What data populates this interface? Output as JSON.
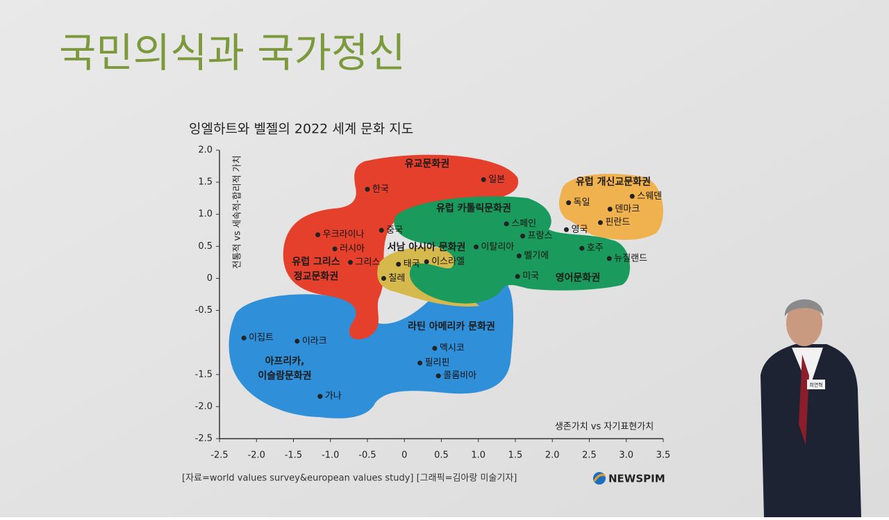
{
  "slide_title": "국민의식과 국가정신",
  "chart_data": {
    "type": "scatter",
    "title": "잉엘하트와 벨젤의 2022 세계 문화 지도",
    "x_label": "생존가치 vs 자기표현가치",
    "y_label": "전통적 vs 세속적-합리적 가치",
    "xlim": [
      -2.5,
      3.5
    ],
    "ylim": [
      -2.5,
      2.0
    ],
    "xticks": [
      -2.5,
      {
        "value": -2,
        "label": "-2.0"
      },
      -1.5,
      {
        "value": -1,
        "label": "-1.0"
      },
      -0.5,
      0,
      0.5,
      {
        "value": 1,
        "label": "1.0"
      },
      1.5,
      {
        "value": 2,
        "label": "2.0"
      },
      2.5,
      {
        "value": 3,
        "label": "3.0"
      },
      3.5
    ],
    "yticks": [
      {
        "value": 2,
        "label": "2.0"
      },
      1.5,
      {
        "value": 1,
        "label": "1.0"
      },
      0.5,
      0,
      -0.5,
      -1.5,
      {
        "value": -2,
        "label": "-2.0"
      },
      -2.5
    ],
    "color": "#222222",
    "labels": [
      "한국",
      "일본",
      "중국",
      "우크라이나",
      "러시아",
      "그리스",
      "태국",
      "이스라엘",
      "칠레",
      "이탈리아",
      "스페인",
      "프랑스",
      "벨기에",
      "미국",
      "독일",
      "스웨덴",
      "덴마크",
      "핀란드",
      "영국",
      "호주",
      "뉴질랜드",
      "이집트",
      "이라크",
      "가나",
      "멕시코",
      "필리핀",
      "콜롬비아"
    ],
    "x": [
      -0.5,
      1.07,
      -0.31,
      -1.17,
      -0.94,
      -0.73,
      -0.08,
      0.3,
      -0.28,
      0.97,
      1.38,
      1.6,
      1.55,
      1.53,
      2.22,
      3.08,
      2.78,
      2.65,
      2.19,
      2.4,
      2.77,
      -2.17,
      -1.45,
      -1.14,
      0.41,
      0.21,
      0.46
    ],
    "values": [
      1.39,
      1.54,
      0.75,
      0.68,
      0.46,
      0.25,
      0.22,
      0.26,
      0.0,
      0.49,
      0.85,
      0.66,
      0.35,
      0.03,
      1.18,
      1.28,
      1.08,
      0.87,
      0.76,
      0.47,
      0.31,
      -0.93,
      -0.98,
      -1.84,
      -1.09,
      -1.32,
      -1.52
    ],
    "regions": [
      [
        "유교문화권"
      ],
      [
        "유럽 그리스",
        "정교문화권"
      ],
      [
        "유럽 카톨릭문화권"
      ],
      [
        "서남 아시아 문화권"
      ],
      [
        "유럽 개신교문화권"
      ],
      [
        "영어문화권"
      ],
      [
        "라틴 아메리카 문화권"
      ],
      [
        "아프리카,",
        "이슬람문화권"
      ]
    ]
  },
  "source": "[자료=world values survey&european values study] [그래픽=김아랑 미술기자]",
  "logo": "NEWSPIM",
  "speaker_tag": "최연혁"
}
